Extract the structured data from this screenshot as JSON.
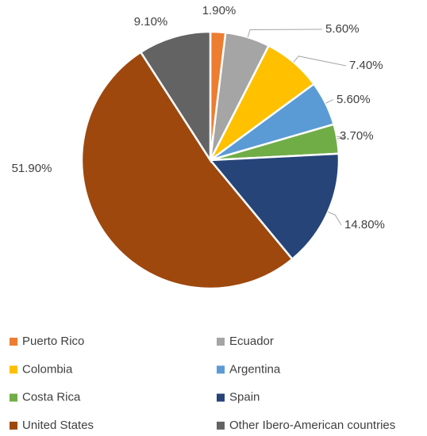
{
  "chart_data": {
    "type": "pie",
    "categories": [
      "Puerto Rico",
      "Ecuador",
      "Colombia",
      "Argentina",
      "Costa Rica",
      "Spain",
      "United States",
      "Other Ibero-American countries"
    ],
    "values": [
      1.9,
      5.6,
      7.4,
      5.6,
      3.7,
      14.8,
      51.9,
      9.1
    ],
    "value_labels": [
      "1.90%",
      "5.60%",
      "7.40%",
      "5.60%",
      "3.70%",
      "14.80%",
      "51.90%",
      "9.10%"
    ],
    "colors": [
      "#ed7d31",
      "#a5a5a5",
      "#ffc000",
      "#5b9bd5",
      "#70ad47",
      "#264478",
      "#9e480e",
      "#636363"
    ],
    "legend": "bottom"
  }
}
